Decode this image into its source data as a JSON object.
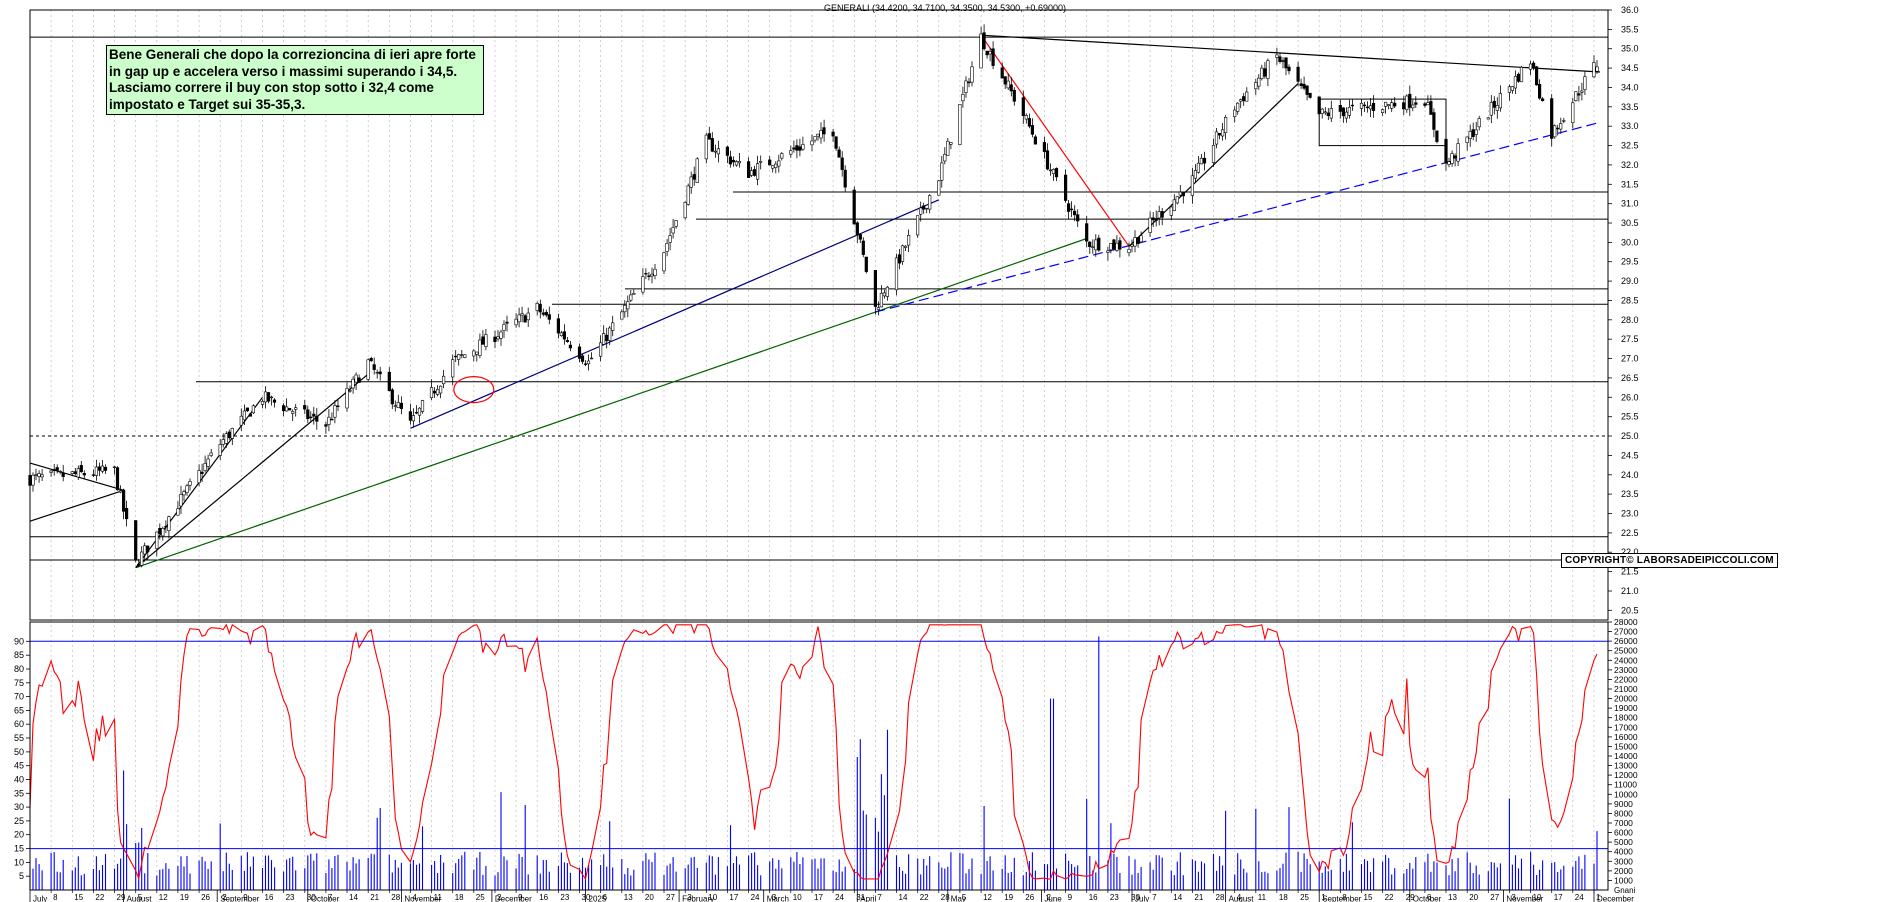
{
  "chart_data": [
    {
      "type": "candlestick",
      "title": "GENERALI (34.4200, 34.7100, 34.3500, 34.5300, +0.69000)",
      "annotation": "Bene Generali che dopo la correzioncina di ieri apre forte\nin gap up e accelera verso i massimi superando i 34,5.\nLasciamo correre il buy con stop sotto i 32,4 come\nimpostato e Target sui 35-35,3.",
      "copyright": "COPYRIGHT© LABORSADEIPICCOLI.COM",
      "ylim": [
        20.25,
        36.0
      ],
      "y_ticks": [
        20.5,
        21.0,
        21.5,
        22.0,
        22.5,
        23.0,
        23.5,
        24.0,
        24.5,
        25.0,
        25.5,
        26.0,
        26.5,
        27.0,
        27.5,
        28.0,
        28.5,
        29.0,
        29.5,
        30.0,
        30.5,
        31.0,
        31.5,
        32.0,
        32.5,
        33.0,
        33.5,
        34.0,
        34.5,
        35.0,
        35.5,
        36.0
      ],
      "y_tick_labels": [
        "20.5",
        "21.0",
        "21.5",
        "22.0",
        "22.5",
        "23.0",
        "23.5",
        "24.0",
        "24.5",
        "25.0",
        "25.5",
        "26.0",
        "26.5",
        "27.0",
        "27.5",
        "28.0",
        "28.5",
        "29.0",
        "29.5",
        "30.0",
        "30.5",
        "31.0",
        "31.5",
        "32.0",
        "32.5",
        "33.0",
        "33.5",
        "34.0",
        "34.5",
        "35.0",
        "35.5",
        "36.0"
      ],
      "key_points": [
        {
          "date": "2024-07-01",
          "close": 23.9
        },
        {
          "date": "2024-07-29",
          "close": 24.1
        },
        {
          "date": "2024-08-05",
          "close": 21.7
        },
        {
          "date": "2024-09-02",
          "close": 24.8
        },
        {
          "date": "2024-09-16",
          "close": 26.0
        },
        {
          "date": "2024-10-07",
          "close": 25.3
        },
        {
          "date": "2024-10-21",
          "close": 26.9
        },
        {
          "date": "2024-11-04",
          "close": 25.3
        },
        {
          "date": "2024-11-18",
          "close": 26.9
        },
        {
          "date": "2024-12-16",
          "close": 28.3
        },
        {
          "date": "2025-01-02",
          "close": 26.9
        },
        {
          "date": "2025-01-27",
          "close": 29.8
        },
        {
          "date": "2025-02-10",
          "close": 32.6
        },
        {
          "date": "2025-02-24",
          "close": 31.8
        },
        {
          "date": "2025-03-24",
          "close": 32.9
        },
        {
          "date": "2025-04-07",
          "close": 28.3
        },
        {
          "date": "2025-04-28",
          "close": 31.7
        },
        {
          "date": "2025-05-12",
          "close": 35.3
        },
        {
          "date": "2025-05-26",
          "close": 33.3
        },
        {
          "date": "2025-06-16",
          "close": 30.0
        },
        {
          "date": "2025-06-30",
          "close": 29.9
        },
        {
          "date": "2025-07-21",
          "close": 31.6
        },
        {
          "date": "2025-08-04",
          "close": 33.5
        },
        {
          "date": "2025-08-18",
          "close": 34.8
        },
        {
          "date": "2025-09-01",
          "close": 33.3
        },
        {
          "date": "2025-10-06",
          "close": 33.7
        },
        {
          "date": "2025-10-13",
          "close": 32.0
        },
        {
          "date": "2025-11-10",
          "close": 34.7
        },
        {
          "date": "2025-11-17",
          "close": 32.8
        },
        {
          "date": "2025-12-01",
          "close": 34.53
        }
      ],
      "horizontal_levels": [
        35.3,
        31.3,
        30.6,
        28.8,
        28.4,
        26.4,
        25.0,
        22.4,
        21.8
      ],
      "dashed_level": 25.0,
      "gridlines": "vertical-dashed"
    },
    {
      "type": "line+bar",
      "series": [
        {
          "kind": "oscillator-line",
          "color": "#ff0000"
        },
        {
          "kind": "volume-bars",
          "color": "#0000ff"
        }
      ],
      "left_ylim": [
        0,
        97
      ],
      "left_ticks": [
        5,
        10,
        15,
        20,
        25,
        30,
        35,
        40,
        45,
        50,
        55,
        60,
        65,
        70,
        75,
        80,
        85,
        90
      ],
      "left_tick_labels": [
        "5",
        "10",
        "15",
        "20",
        "25",
        "30",
        "35",
        "40",
        "45",
        "50",
        "55",
        "60",
        "65",
        "70",
        "75",
        "80",
        "85",
        "90"
      ],
      "right_ylim": [
        0,
        28000
      ],
      "right_ticks": [
        1000,
        2000,
        3000,
        4000,
        5000,
        6000,
        7000,
        8000,
        9000,
        10000,
        11000,
        12000,
        13000,
        14000,
        15000,
        16000,
        17000,
        18000,
        19000,
        20000,
        21000,
        22000,
        23000,
        24000,
        25000,
        26000,
        27000,
        28000
      ],
      "right_tick_labels": [
        "1000",
        "2000",
        "3000",
        "4000",
        "5000",
        "6000",
        "7000",
        "8000",
        "9000",
        "10000",
        "11000",
        "12000",
        "13000",
        "14000",
        "15000",
        "16000",
        "17000",
        "18000",
        "19000",
        "20000",
        "21000",
        "22000",
        "23000",
        "24000",
        "25000",
        "26000",
        "27000",
        "28000"
      ],
      "reference_levels": [
        90,
        15
      ],
      "right_footer_label": "Gnani"
    }
  ],
  "x_axis": {
    "day_ticks": [
      "8",
      "15",
      "22",
      "29",
      "5",
      "12",
      "19",
      "26",
      "2",
      "9",
      "16",
      "23",
      "30",
      "7",
      "14",
      "21",
      "28",
      "4",
      "11",
      "18",
      "25",
      "2",
      "9",
      "16",
      "23",
      "30",
      "6",
      "13",
      "20",
      "27",
      "3",
      "10",
      "17",
      "24",
      "3",
      "10",
      "17",
      "24",
      "31",
      "7",
      "14",
      "22",
      "28",
      "5",
      "12",
      "19",
      "26",
      "2",
      "9",
      "16",
      "23",
      "30",
      "7",
      "14",
      "21",
      "28",
      "4",
      "11",
      "18",
      "25",
      "1",
      "8",
      "15",
      "22",
      "29",
      "6",
      "13",
      "20",
      "27",
      "3",
      "10",
      "17",
      "24",
      "1",
      "8",
      "15"
    ],
    "month_labels": [
      "July",
      "August",
      "September",
      "October",
      "November",
      "December",
      "2025",
      "February",
      "March",
      "April",
      "May",
      "June",
      "July",
      "August",
      "September",
      "October",
      "November",
      "December"
    ]
  },
  "colors": {
    "background": "#ffffff",
    "candle_up": "#ffffff",
    "candle_down": "#000000",
    "oscillator": "#ff0000",
    "volume": "#0000ff",
    "note_bg": "#ccffcc",
    "trend_blue": "#000080",
    "trend_green": "#006400",
    "trend_red": "#ff0000",
    "support_dash": "#0000ff"
  }
}
